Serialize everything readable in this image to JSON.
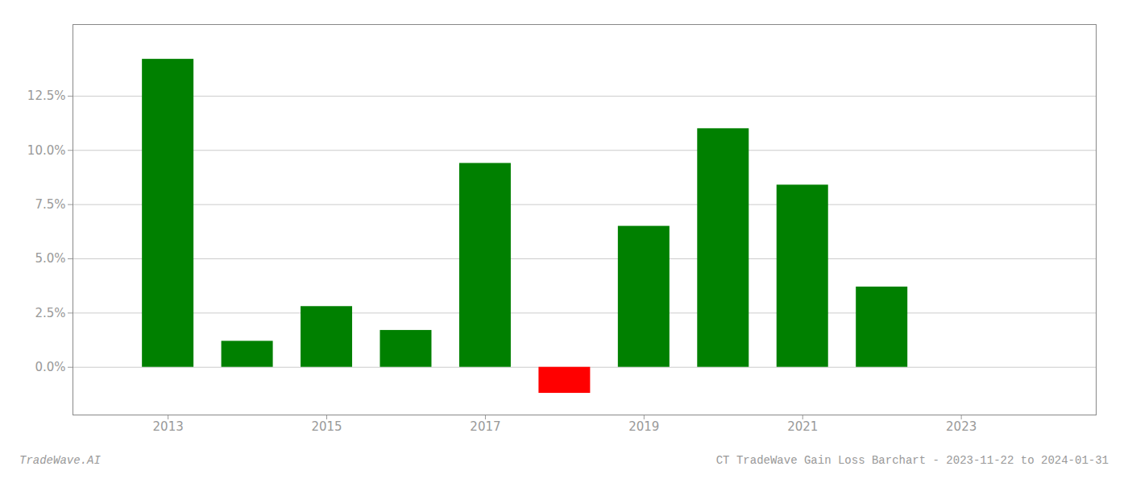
{
  "chart_data": {
    "type": "bar",
    "x": [
      2013,
      2014,
      2015,
      2016,
      2017,
      2018,
      2019,
      2020,
      2021,
      2022,
      2023
    ],
    "values": [
      0.142,
      0.012,
      0.028,
      0.017,
      0.094,
      -0.012,
      0.065,
      0.11,
      0.084,
      0.037,
      0.0
    ],
    "colors": [
      "#008000",
      "#008000",
      "#008000",
      "#008000",
      "#008000",
      "#ff0000",
      "#008000",
      "#008000",
      "#008000",
      "#008000",
      "#008000"
    ],
    "xlim": [
      2011.8,
      2024.7
    ],
    "xticks": [
      2013,
      2015,
      2017,
      2019,
      2021,
      2023
    ],
    "ylim": [
      -0.022,
      0.158
    ],
    "yticks": [
      {
        "value": 0.0,
        "label": "0.0%"
      },
      {
        "value": 0.025,
        "label": "2.5%"
      },
      {
        "value": 0.05,
        "label": "5.0%"
      },
      {
        "value": 0.075,
        "label": "7.5%"
      },
      {
        "value": 0.1,
        "label": "10.0%"
      },
      {
        "value": 0.125,
        "label": "12.5%"
      }
    ],
    "grid": true,
    "annotations": [
      "TradeWave.AI",
      "CT TradeWave Gain Loss Barchart - 2023-11-22 to 2024-01-31"
    ]
  }
}
